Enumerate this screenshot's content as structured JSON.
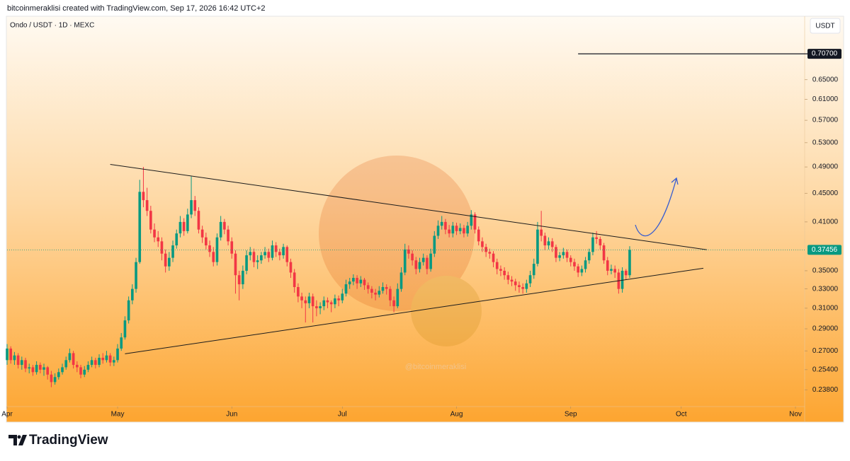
{
  "chart_data": {
    "type": "candlestick",
    "header": "bitcoinmeraklisi created with TradingView.com, Sep 17, 2026 16:42 UTC+2",
    "title": "Ondo / USDT · 1D · MEXC",
    "currency_label": "USDT",
    "watermark": "@bitcoinmeraklisi",
    "brand": "TradingView",
    "log_scale": true,
    "up_color": "#089981",
    "down_color": "#f23645",
    "xlim": [
      0,
      216.5
    ],
    "xticks": [
      {
        "value": 0,
        "label": "Apr"
      },
      {
        "value": 30,
        "label": "May"
      },
      {
        "value": 61,
        "label": "Jun"
      },
      {
        "value": 91,
        "label": "Jul"
      },
      {
        "value": 122,
        "label": "Aug"
      },
      {
        "value": 153,
        "label": "Sep"
      },
      {
        "value": 183,
        "label": "Oct"
      },
      {
        "value": 214,
        "label": "Nov"
      }
    ],
    "ylim": [
      0.2254,
      0.7948
    ],
    "yticks": [
      {
        "value": 0.238,
        "label": "0.23800"
      },
      {
        "value": 0.254,
        "label": "0.25400"
      },
      {
        "value": 0.27,
        "label": "0.27000"
      },
      {
        "value": 0.29,
        "label": "0.29000"
      },
      {
        "value": 0.31,
        "label": "0.31000"
      },
      {
        "value": 0.33,
        "label": "0.33000"
      },
      {
        "value": 0.35,
        "label": "0.35000"
      },
      {
        "value": 0.41,
        "label": "0.41000"
      },
      {
        "value": 0.45,
        "label": "0.45000"
      },
      {
        "value": 0.49,
        "label": "0.49000"
      },
      {
        "value": 0.53,
        "label": "0.53000"
      },
      {
        "value": 0.57,
        "label": "0.57000"
      },
      {
        "value": 0.61,
        "label": "0.61000"
      },
      {
        "value": 0.65,
        "label": "0.65000"
      }
    ],
    "hline": {
      "value": 0.707,
      "label": "0.70700",
      "from": 155
    },
    "last_price": {
      "value": 0.37456,
      "label": "0.37456"
    },
    "trendlines": [
      {
        "x": [
          28,
          190
        ],
        "y": [
          0.494,
          0.3746
        ]
      },
      {
        "x": [
          32,
          189
        ],
        "y": [
          0.2674,
          0.3529
        ]
      }
    ],
    "candles": [
      [
        0.262,
        0.276,
        0.258,
        0.272
      ],
      [
        0.272,
        0.274,
        0.259,
        0.262
      ],
      [
        0.262,
        0.269,
        0.258,
        0.266
      ],
      [
        0.266,
        0.268,
        0.255,
        0.258
      ],
      [
        0.258,
        0.265,
        0.254,
        0.262
      ],
      [
        0.262,
        0.264,
        0.252,
        0.255
      ],
      [
        0.255,
        0.259,
        0.251,
        0.256
      ],
      [
        0.256,
        0.258,
        0.249,
        0.252
      ],
      [
        0.252,
        0.261,
        0.25,
        0.258
      ],
      [
        0.258,
        0.26,
        0.251,
        0.254
      ],
      [
        0.254,
        0.259,
        0.249,
        0.256
      ],
      [
        0.256,
        0.257,
        0.246,
        0.25
      ],
      [
        0.25,
        0.253,
        0.24,
        0.244
      ],
      [
        0.244,
        0.251,
        0.242,
        0.248
      ],
      [
        0.248,
        0.255,
        0.246,
        0.252
      ],
      [
        0.252,
        0.259,
        0.25,
        0.256
      ],
      [
        0.256,
        0.265,
        0.254,
        0.262
      ],
      [
        0.262,
        0.272,
        0.26,
        0.268
      ],
      [
        0.268,
        0.27,
        0.255,
        0.258
      ],
      [
        0.258,
        0.261,
        0.252,
        0.256
      ],
      [
        0.256,
        0.258,
        0.247,
        0.25
      ],
      [
        0.25,
        0.257,
        0.248,
        0.254
      ],
      [
        0.254,
        0.261,
        0.252,
        0.258
      ],
      [
        0.258,
        0.265,
        0.256,
        0.262
      ],
      [
        0.262,
        0.264,
        0.255,
        0.258
      ],
      [
        0.258,
        0.267,
        0.256,
        0.264
      ],
      [
        0.264,
        0.268,
        0.259,
        0.262
      ],
      [
        0.262,
        0.27,
        0.26,
        0.266
      ],
      [
        0.266,
        0.268,
        0.257,
        0.26
      ],
      [
        0.26,
        0.265,
        0.257,
        0.262
      ],
      [
        0.262,
        0.276,
        0.26,
        0.272
      ],
      [
        0.272,
        0.286,
        0.27,
        0.282
      ],
      [
        0.282,
        0.302,
        0.28,
        0.298
      ],
      [
        0.298,
        0.322,
        0.295,
        0.318
      ],
      [
        0.318,
        0.335,
        0.314,
        0.33
      ],
      [
        0.33,
        0.365,
        0.326,
        0.36
      ],
      [
        0.36,
        0.47,
        0.358,
        0.452
      ],
      [
        0.452,
        0.49,
        0.43,
        0.44
      ],
      [
        0.44,
        0.458,
        0.418,
        0.425
      ],
      [
        0.425,
        0.432,
        0.395,
        0.4
      ],
      [
        0.4,
        0.408,
        0.384,
        0.39
      ],
      [
        0.39,
        0.398,
        0.378,
        0.385
      ],
      [
        0.385,
        0.39,
        0.362,
        0.37
      ],
      [
        0.37,
        0.375,
        0.348,
        0.355
      ],
      [
        0.355,
        0.372,
        0.35,
        0.365
      ],
      [
        0.365,
        0.386,
        0.36,
        0.38
      ],
      [
        0.38,
        0.4,
        0.376,
        0.395
      ],
      [
        0.395,
        0.418,
        0.39,
        0.41
      ],
      [
        0.41,
        0.415,
        0.392,
        0.398
      ],
      [
        0.398,
        0.428,
        0.395,
        0.42
      ],
      [
        0.42,
        0.475,
        0.415,
        0.44
      ],
      [
        0.44,
        0.446,
        0.418,
        0.425
      ],
      [
        0.425,
        0.43,
        0.395,
        0.4
      ],
      [
        0.4,
        0.405,
        0.383,
        0.39
      ],
      [
        0.39,
        0.396,
        0.375,
        0.38
      ],
      [
        0.38,
        0.386,
        0.366,
        0.372
      ],
      [
        0.372,
        0.378,
        0.355,
        0.36
      ],
      [
        0.36,
        0.395,
        0.356,
        0.39
      ],
      [
        0.39,
        0.418,
        0.386,
        0.41
      ],
      [
        0.41,
        0.414,
        0.394,
        0.4
      ],
      [
        0.4,
        0.405,
        0.38,
        0.385
      ],
      [
        0.385,
        0.39,
        0.364,
        0.37
      ],
      [
        0.37,
        0.374,
        0.325,
        0.345
      ],
      [
        0.345,
        0.35,
        0.318,
        0.335
      ],
      [
        0.335,
        0.356,
        0.33,
        0.35
      ],
      [
        0.35,
        0.374,
        0.346,
        0.368
      ],
      [
        0.368,
        0.378,
        0.362,
        0.372
      ],
      [
        0.372,
        0.376,
        0.354,
        0.36
      ],
      [
        0.36,
        0.368,
        0.352,
        0.362
      ],
      [
        0.362,
        0.372,
        0.358,
        0.368
      ],
      [
        0.368,
        0.378,
        0.364,
        0.372
      ],
      [
        0.372,
        0.376,
        0.36,
        0.365
      ],
      [
        0.365,
        0.386,
        0.362,
        0.38
      ],
      [
        0.38,
        0.384,
        0.366,
        0.372
      ],
      [
        0.372,
        0.376,
        0.362,
        0.368
      ],
      [
        0.368,
        0.382,
        0.364,
        0.378
      ],
      [
        0.378,
        0.38,
        0.355,
        0.36
      ],
      [
        0.36,
        0.364,
        0.342,
        0.348
      ],
      [
        0.348,
        0.352,
        0.326,
        0.332
      ],
      [
        0.332,
        0.336,
        0.316,
        0.322
      ],
      [
        0.322,
        0.326,
        0.31,
        0.318
      ],
      [
        0.318,
        0.322,
        0.296,
        0.315
      ],
      [
        0.315,
        0.326,
        0.31,
        0.322
      ],
      [
        0.322,
        0.325,
        0.296,
        0.312
      ],
      [
        0.312,
        0.318,
        0.302,
        0.31
      ],
      [
        0.31,
        0.316,
        0.304,
        0.312
      ],
      [
        0.312,
        0.322,
        0.308,
        0.318
      ],
      [
        0.318,
        0.321,
        0.31,
        0.316
      ],
      [
        0.316,
        0.318,
        0.306,
        0.314
      ],
      [
        0.314,
        0.324,
        0.31,
        0.32
      ],
      [
        0.32,
        0.323,
        0.312,
        0.318
      ],
      [
        0.318,
        0.33,
        0.315,
        0.325
      ],
      [
        0.325,
        0.34,
        0.322,
        0.335
      ],
      [
        0.335,
        0.342,
        0.33,
        0.338
      ],
      [
        0.338,
        0.346,
        0.334,
        0.342
      ],
      [
        0.342,
        0.345,
        0.33,
        0.336
      ],
      [
        0.336,
        0.344,
        0.332,
        0.34
      ],
      [
        0.34,
        0.342,
        0.329,
        0.334
      ],
      [
        0.334,
        0.337,
        0.325,
        0.33
      ],
      [
        0.33,
        0.333,
        0.32,
        0.326
      ],
      [
        0.326,
        0.33,
        0.318,
        0.324
      ],
      [
        0.324,
        0.333,
        0.321,
        0.328
      ],
      [
        0.328,
        0.337,
        0.325,
        0.332
      ],
      [
        0.332,
        0.335,
        0.324,
        0.33
      ],
      [
        0.33,
        0.333,
        0.312,
        0.318
      ],
      [
        0.318,
        0.322,
        0.306,
        0.312
      ],
      [
        0.312,
        0.336,
        0.31,
        0.33
      ],
      [
        0.33,
        0.354,
        0.327,
        0.348
      ],
      [
        0.348,
        0.382,
        0.345,
        0.375
      ],
      [
        0.375,
        0.38,
        0.364,
        0.37
      ],
      [
        0.37,
        0.374,
        0.356,
        0.362
      ],
      [
        0.362,
        0.366,
        0.346,
        0.352
      ],
      [
        0.352,
        0.365,
        0.348,
        0.36
      ],
      [
        0.36,
        0.37,
        0.356,
        0.365
      ],
      [
        0.365,
        0.368,
        0.346,
        0.352
      ],
      [
        0.352,
        0.376,
        0.349,
        0.37
      ],
      [
        0.37,
        0.398,
        0.366,
        0.392
      ],
      [
        0.392,
        0.412,
        0.388,
        0.405
      ],
      [
        0.405,
        0.418,
        0.4,
        0.41
      ],
      [
        0.41,
        0.414,
        0.394,
        0.4
      ],
      [
        0.4,
        0.406,
        0.39,
        0.395
      ],
      [
        0.395,
        0.41,
        0.39,
        0.405
      ],
      [
        0.405,
        0.409,
        0.393,
        0.398
      ],
      [
        0.398,
        0.408,
        0.394,
        0.402
      ],
      [
        0.402,
        0.406,
        0.39,
        0.395
      ],
      [
        0.395,
        0.41,
        0.391,
        0.405
      ],
      [
        0.405,
        0.426,
        0.4,
        0.42
      ],
      [
        0.42,
        0.423,
        0.395,
        0.4
      ],
      [
        0.4,
        0.404,
        0.38,
        0.385
      ],
      [
        0.385,
        0.39,
        0.372,
        0.378
      ],
      [
        0.378,
        0.382,
        0.366,
        0.372
      ],
      [
        0.372,
        0.376,
        0.364,
        0.37
      ],
      [
        0.37,
        0.373,
        0.354,
        0.36
      ],
      [
        0.36,
        0.364,
        0.346,
        0.352
      ],
      [
        0.352,
        0.356,
        0.344,
        0.35
      ],
      [
        0.35,
        0.354,
        0.34,
        0.345
      ],
      [
        0.345,
        0.349,
        0.335,
        0.34
      ],
      [
        0.34,
        0.344,
        0.333,
        0.338
      ],
      [
        0.338,
        0.341,
        0.328,
        0.334
      ],
      [
        0.334,
        0.338,
        0.326,
        0.332
      ],
      [
        0.332,
        0.336,
        0.325,
        0.33
      ],
      [
        0.33,
        0.34,
        0.326,
        0.336
      ],
      [
        0.336,
        0.35,
        0.332,
        0.345
      ],
      [
        0.345,
        0.364,
        0.341,
        0.358
      ],
      [
        0.358,
        0.41,
        0.355,
        0.4
      ],
      [
        0.4,
        0.425,
        0.385,
        0.392
      ],
      [
        0.392,
        0.396,
        0.374,
        0.38
      ],
      [
        0.38,
        0.39,
        0.375,
        0.385
      ],
      [
        0.385,
        0.389,
        0.372,
        0.378
      ],
      [
        0.378,
        0.381,
        0.36,
        0.365
      ],
      [
        0.365,
        0.372,
        0.361,
        0.368
      ],
      [
        0.368,
        0.377,
        0.364,
        0.372
      ],
      [
        0.372,
        0.375,
        0.36,
        0.365
      ],
      [
        0.365,
        0.368,
        0.355,
        0.36
      ],
      [
        0.36,
        0.364,
        0.35,
        0.355
      ],
      [
        0.355,
        0.358,
        0.343,
        0.348
      ],
      [
        0.348,
        0.356,
        0.344,
        0.352
      ],
      [
        0.352,
        0.366,
        0.348,
        0.362
      ],
      [
        0.362,
        0.376,
        0.358,
        0.372
      ],
      [
        0.372,
        0.396,
        0.368,
        0.39
      ],
      [
        0.39,
        0.398,
        0.382,
        0.388
      ],
      [
        0.388,
        0.391,
        0.375,
        0.38
      ],
      [
        0.38,
        0.383,
        0.358,
        0.362
      ],
      [
        0.362,
        0.366,
        0.345,
        0.35
      ],
      [
        0.35,
        0.357,
        0.346,
        0.352
      ],
      [
        0.352,
        0.356,
        0.342,
        0.348
      ],
      [
        0.348,
        0.352,
        0.325,
        0.33
      ],
      [
        0.33,
        0.354,
        0.326,
        0.35
      ],
      [
        0.35,
        0.352,
        0.34,
        0.345
      ],
      [
        0.345,
        0.379,
        0.342,
        0.37456
      ]
    ]
  }
}
